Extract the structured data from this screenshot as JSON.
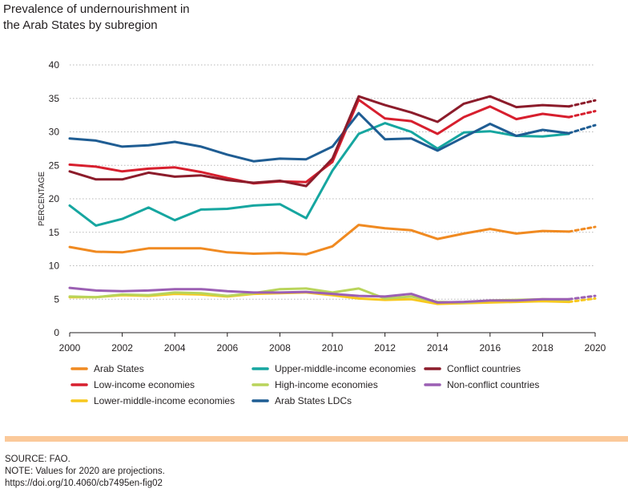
{
  "title": {
    "line1": "Prevalence of undernourishment in",
    "line2": "the Arab States by subregion"
  },
  "footer": {
    "source": "SOURCE: FAO.",
    "note": "NOTE: Values for 2020 are projections.",
    "doi": "https://doi.org/10.4060/cb7495en-fig02"
  },
  "colors": {
    "source_bar": "#fbc99a"
  },
  "chart_data": {
    "type": "line",
    "ylabel": "PERCENTAGE",
    "xlabel": "",
    "xlim": [
      2000,
      2020
    ],
    "ylim": [
      0,
      40
    ],
    "x_ticks": [
      2000,
      2002,
      2004,
      2006,
      2008,
      2010,
      2012,
      2014,
      2016,
      2018,
      2020
    ],
    "y_ticks": [
      0,
      5,
      10,
      15,
      20,
      25,
      30,
      35,
      40
    ],
    "grid": "horizontal dotted",
    "legend_position": "bottom",
    "projection_note": "2020 values shown as dashed segment",
    "x": [
      2000,
      2001,
      2002,
      2003,
      2004,
      2005,
      2006,
      2007,
      2008,
      2009,
      2010,
      2011,
      2012,
      2013,
      2014,
      2015,
      2016,
      2017,
      2018,
      2019,
      2020
    ],
    "series": [
      {
        "name": "Arab States",
        "color": "#f08a21",
        "values": [
          12.8,
          12.1,
          12.0,
          12.6,
          12.6,
          12.6,
          12.0,
          11.8,
          11.9,
          11.7,
          12.9,
          16.1,
          15.6,
          15.3,
          14.0,
          14.8,
          15.5,
          14.8,
          15.2,
          15.1,
          15.8
        ]
      },
      {
        "name": "Low-income economies",
        "color": "#d71f2e",
        "values": [
          25.1,
          24.8,
          24.1,
          24.5,
          24.7,
          24.0,
          23.1,
          22.3,
          22.6,
          22.5,
          25.5,
          34.8,
          32.0,
          31.6,
          29.7,
          32.2,
          33.8,
          31.9,
          32.7,
          32.2,
          33.1
        ]
      },
      {
        "name": "Lower-middle-income economies",
        "color": "#f7c81e",
        "values": [
          5.3,
          5.3,
          5.6,
          5.5,
          5.8,
          5.7,
          5.4,
          5.8,
          5.9,
          6.0,
          5.6,
          5.1,
          4.9,
          5.0,
          4.3,
          4.4,
          4.5,
          4.6,
          4.7,
          4.6,
          5.1
        ]
      },
      {
        "name": "Upper-middle-income economies",
        "color": "#16a6a0",
        "values": [
          19.0,
          16.0,
          17.0,
          18.7,
          16.8,
          18.4,
          18.5,
          19.0,
          19.2,
          17.1,
          24.2,
          29.7,
          31.3,
          30.0,
          27.5,
          29.9,
          30.1,
          29.4,
          29.3,
          29.7,
          null
        ]
      },
      {
        "name": "High-income economies",
        "color": "#b9d45b",
        "values": [
          5.4,
          5.3,
          5.7,
          5.6,
          6.0,
          5.9,
          5.5,
          5.9,
          6.5,
          6.6,
          6.0,
          6.6,
          5.1,
          5.4,
          4.6,
          4.5,
          4.8,
          4.9,
          5.0,
          4.9,
          null
        ]
      },
      {
        "name": "Arab States LDCs",
        "color": "#1f5d93",
        "values": [
          29.0,
          28.7,
          27.8,
          28.0,
          28.5,
          27.8,
          26.6,
          25.6,
          26.0,
          25.9,
          27.8,
          32.8,
          28.9,
          29.0,
          27.2,
          29.2,
          31.2,
          29.4,
          30.3,
          29.8,
          31.0
        ]
      },
      {
        "name": "Conflict countries",
        "color": "#8c1c2b",
        "values": [
          24.1,
          22.9,
          22.9,
          23.9,
          23.3,
          23.5,
          22.8,
          22.4,
          22.7,
          21.9,
          26.0,
          35.3,
          34.0,
          32.9,
          31.5,
          34.2,
          35.3,
          33.7,
          34.0,
          33.8,
          34.7
        ]
      },
      {
        "name": "Non-conflict countries",
        "color": "#9b5fb3",
        "values": [
          6.7,
          6.3,
          6.2,
          6.3,
          6.5,
          6.5,
          6.2,
          6.0,
          6.0,
          6.1,
          5.8,
          5.5,
          5.4,
          5.8,
          4.5,
          4.6,
          4.8,
          4.8,
          5.0,
          5.0,
          5.5
        ]
      }
    ],
    "legend": [
      [
        "Arab States",
        "Upper-middle-income economies",
        "Conflict countries"
      ],
      [
        "Low-income economies",
        "High-income economies",
        "Non-conflict countries"
      ],
      [
        "Lower-middle-income economies",
        "Arab States LDCs"
      ]
    ]
  }
}
